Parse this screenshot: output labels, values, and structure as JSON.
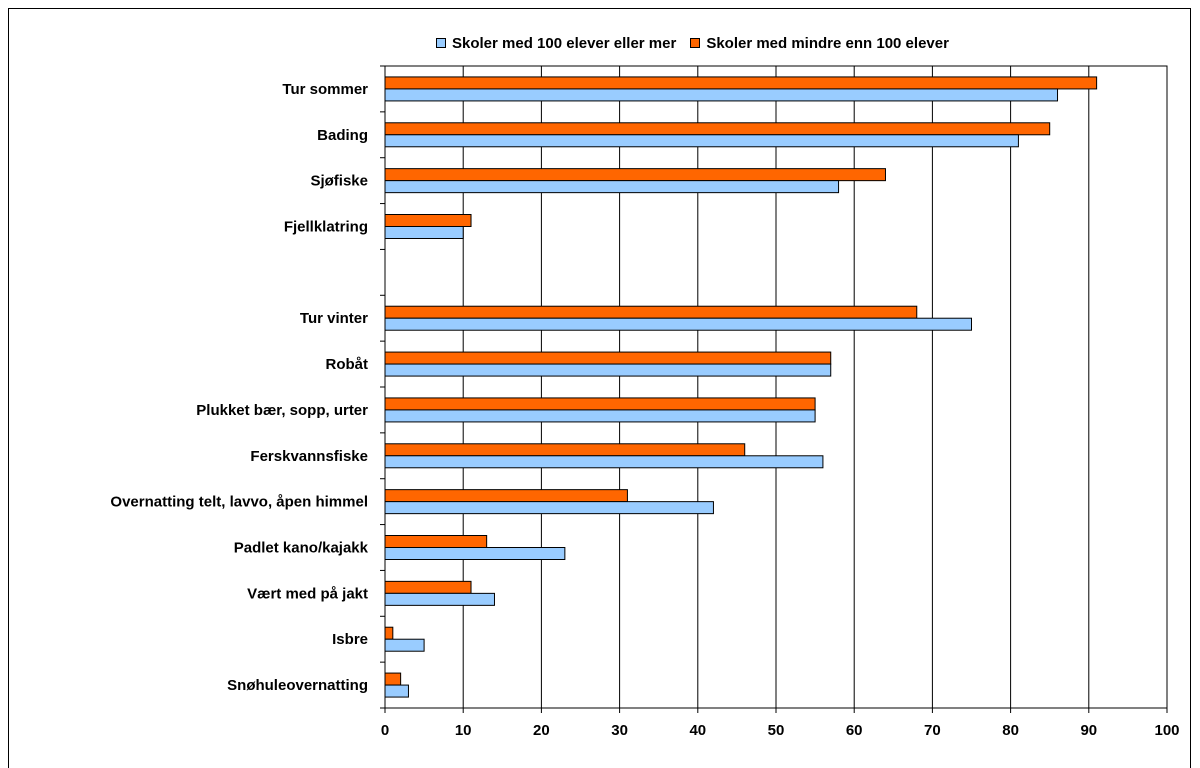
{
  "chart_data": {
    "type": "bar",
    "orientation": "horizontal",
    "categories": [
      "Tur sommer",
      "Bading",
      "Sjøfiske",
      "Fjellklatring",
      "",
      "Tur vinter",
      "Robåt",
      "Plukket bær, sopp, urter",
      "Ferskvannsfiske",
      "Overnatting telt, lavvo, åpen himmel",
      "Padlet kano/kajakk",
      "Vært med på jakt",
      "Isbre",
      "Snøhuleovernatting"
    ],
    "series": [
      {
        "name": "Skoler med 100 elever eller mer",
        "color": "#99CCFF",
        "values": [
          86,
          81,
          58,
          10,
          null,
          75,
          57,
          55,
          56,
          42,
          23,
          14,
          5,
          3
        ]
      },
      {
        "name": "Skoler med mindre enn 100 elever",
        "color": "#FF6600",
        "values": [
          91,
          85,
          64,
          11,
          null,
          68,
          57,
          55,
          46,
          31,
          13,
          11,
          1,
          2
        ]
      }
    ],
    "xlim": [
      0,
      100
    ],
    "xticks": [
      "0",
      "10",
      "20",
      "30",
      "40",
      "50",
      "60",
      "70",
      "80",
      "90",
      "100"
    ],
    "grid": true,
    "legend_position": "top"
  }
}
